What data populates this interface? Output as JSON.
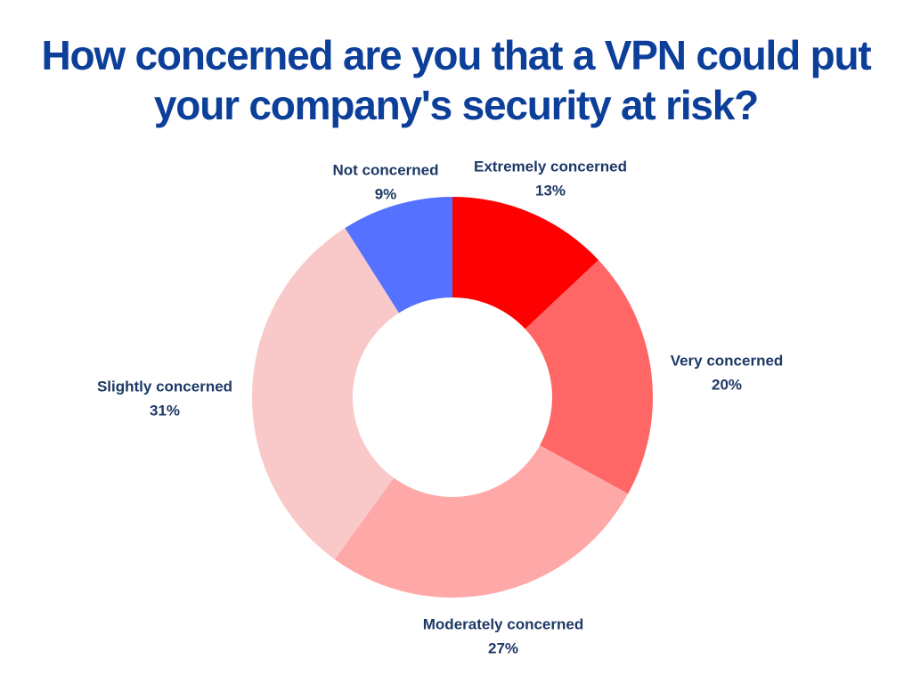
{
  "chart_data": {
    "type": "donut",
    "title": "How concerned are you that a VPN could put your company's security at risk?",
    "categories": [
      "Extremely concerned",
      "Very concerned",
      "Moderately concerned",
      "Slightly concerned",
      "Not concerned"
    ],
    "values": [
      13,
      20,
      27,
      31,
      9
    ],
    "value_labels": [
      "13%",
      "20%",
      "27%",
      "31%",
      "9%"
    ],
    "colors": [
      "#ff0000",
      "#ff6666",
      "#ffa8a8",
      "#f9c9c9",
      "#5571ff"
    ]
  }
}
